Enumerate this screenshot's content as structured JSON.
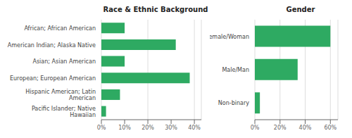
{
  "chart_data": [
    {
      "type": "bar",
      "orientation": "horizontal",
      "title": "Race & Ethnic Background",
      "categories": [
        "Pacific Islander; Native\nHawaiian",
        "Hispanic American; Latin\nAmerican",
        "European; European American",
        "Asian; Asian American",
        "American Indian; Alaska Native",
        "African; African American"
      ],
      "values": [
        0.02,
        0.08,
        0.38,
        0.1,
        0.32,
        0.1
      ],
      "color": "#2eaa62",
      "xlim": [
        0,
        0.43
      ],
      "xticks": [
        {
          "value": 0.0,
          "label": "0%"
        },
        {
          "value": 0.1,
          "label": "10%"
        },
        {
          "value": 0.2,
          "label": "20%"
        },
        {
          "value": 0.3,
          "label": "30%"
        },
        {
          "value": 0.4,
          "label": "40%"
        }
      ],
      "grid": true
    },
    {
      "type": "bar",
      "orientation": "horizontal",
      "title": "Gender",
      "categories": [
        "Non-binary",
        "Male/Man",
        "Female/Woman"
      ],
      "values": [
        0.04,
        0.34,
        0.6
      ],
      "color": "#2eaa62",
      "xlim": [
        0,
        0.66
      ],
      "xticks": [
        {
          "value": 0.0,
          "label": "0%"
        },
        {
          "value": 0.2,
          "label": "20%"
        },
        {
          "value": 0.4,
          "label": "40%"
        },
        {
          "value": 0.6,
          "label": "60%"
        }
      ],
      "grid": true
    }
  ]
}
